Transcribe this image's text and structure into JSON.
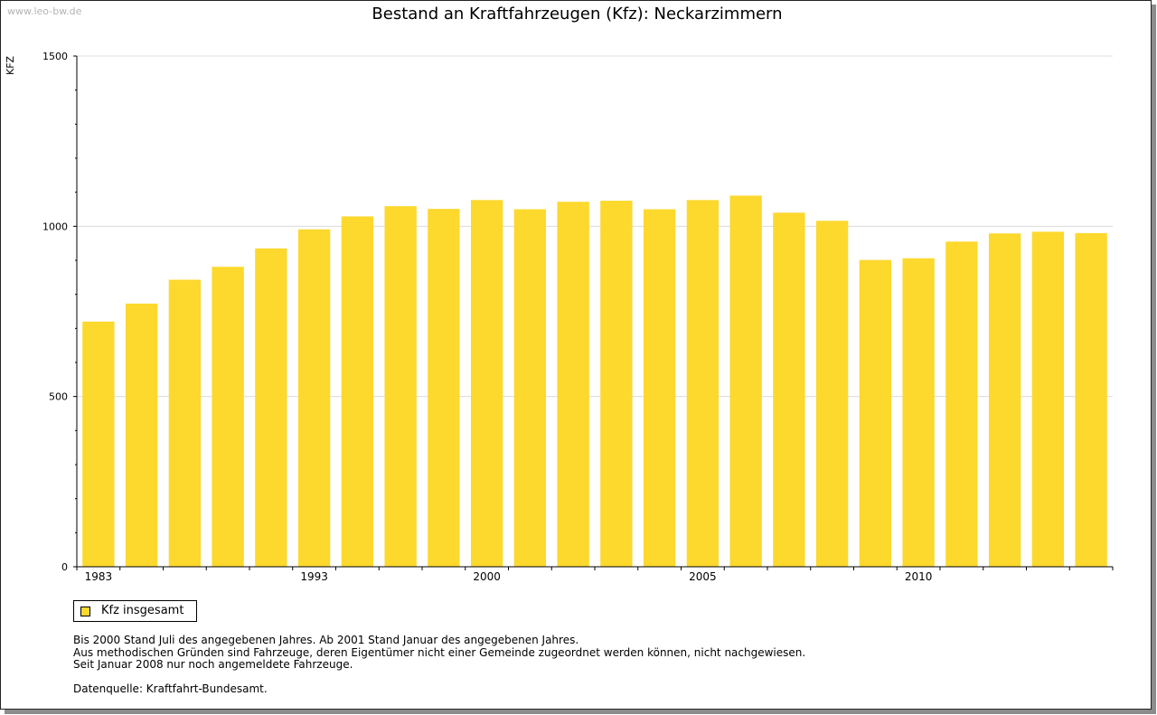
{
  "watermark": "www.leo-bw.de",
  "chart_data": {
    "type": "bar",
    "title": "Bestand an Kraftfahrzeugen (Kfz): Neckarzimmern",
    "ylabel": "KFZ",
    "xlabel": "",
    "ylim": [
      0,
      1500
    ],
    "yticks": [
      0,
      500,
      1000,
      1500
    ],
    "grid": true,
    "x_labels": [
      {
        "year": 1983,
        "label": "1983"
      },
      {
        "year": 1993,
        "label": "1993"
      },
      {
        "year": 2000,
        "label": "2000"
      },
      {
        "year": 2005,
        "label": "2005"
      },
      {
        "year": 2010,
        "label": "2010"
      }
    ],
    "series": [
      {
        "name": "Kfz insgesamt",
        "color": "#fdd82d",
        "points": [
          {
            "year": 1983,
            "value": 720
          },
          {
            "year": 1985,
            "value": 773
          },
          {
            "year": 1987,
            "value": 843
          },
          {
            "year": 1989,
            "value": 881
          },
          {
            "year": 1991,
            "value": 935
          },
          {
            "year": 1993,
            "value": 991
          },
          {
            "year": 1995,
            "value": 1029
          },
          {
            "year": 1997,
            "value": 1059
          },
          {
            "year": 1999,
            "value": 1051
          },
          {
            "year": 2000,
            "value": 1077
          },
          {
            "year": 2001,
            "value": 1050
          },
          {
            "year": 2002,
            "value": 1072
          },
          {
            "year": 2003,
            "value": 1075
          },
          {
            "year": 2004,
            "value": 1050
          },
          {
            "year": 2005,
            "value": 1077
          },
          {
            "year": 2006,
            "value": 1090
          },
          {
            "year": 2007,
            "value": 1040
          },
          {
            "year": 2008,
            "value": 1016
          },
          {
            "year": 2009,
            "value": 901
          },
          {
            "year": 2010,
            "value": 906
          },
          {
            "year": 2011,
            "value": 955
          },
          {
            "year": 2012,
            "value": 979
          },
          {
            "year": 2013,
            "value": 984
          },
          {
            "year": 2014,
            "value": 980
          }
        ]
      }
    ],
    "legend": {
      "position": "bottom-left",
      "label": "Kfz insgesamt"
    }
  },
  "notes": {
    "line1": "Bis 2000 Stand Juli des angegebenen Jahres. Ab 2001 Stand Januar des angegebenen Jahres.",
    "line2": "Aus methodischen Gründen sind Fahrzeuge, deren Eigentümer nicht einer Gemeinde zugeordnet werden können, nicht nachgewiesen.",
    "line3": "Seit Januar 2008 nur noch angemeldete Fahrzeuge.",
    "source": "Datenquelle: Kraftfahrt-Bundesamt."
  }
}
